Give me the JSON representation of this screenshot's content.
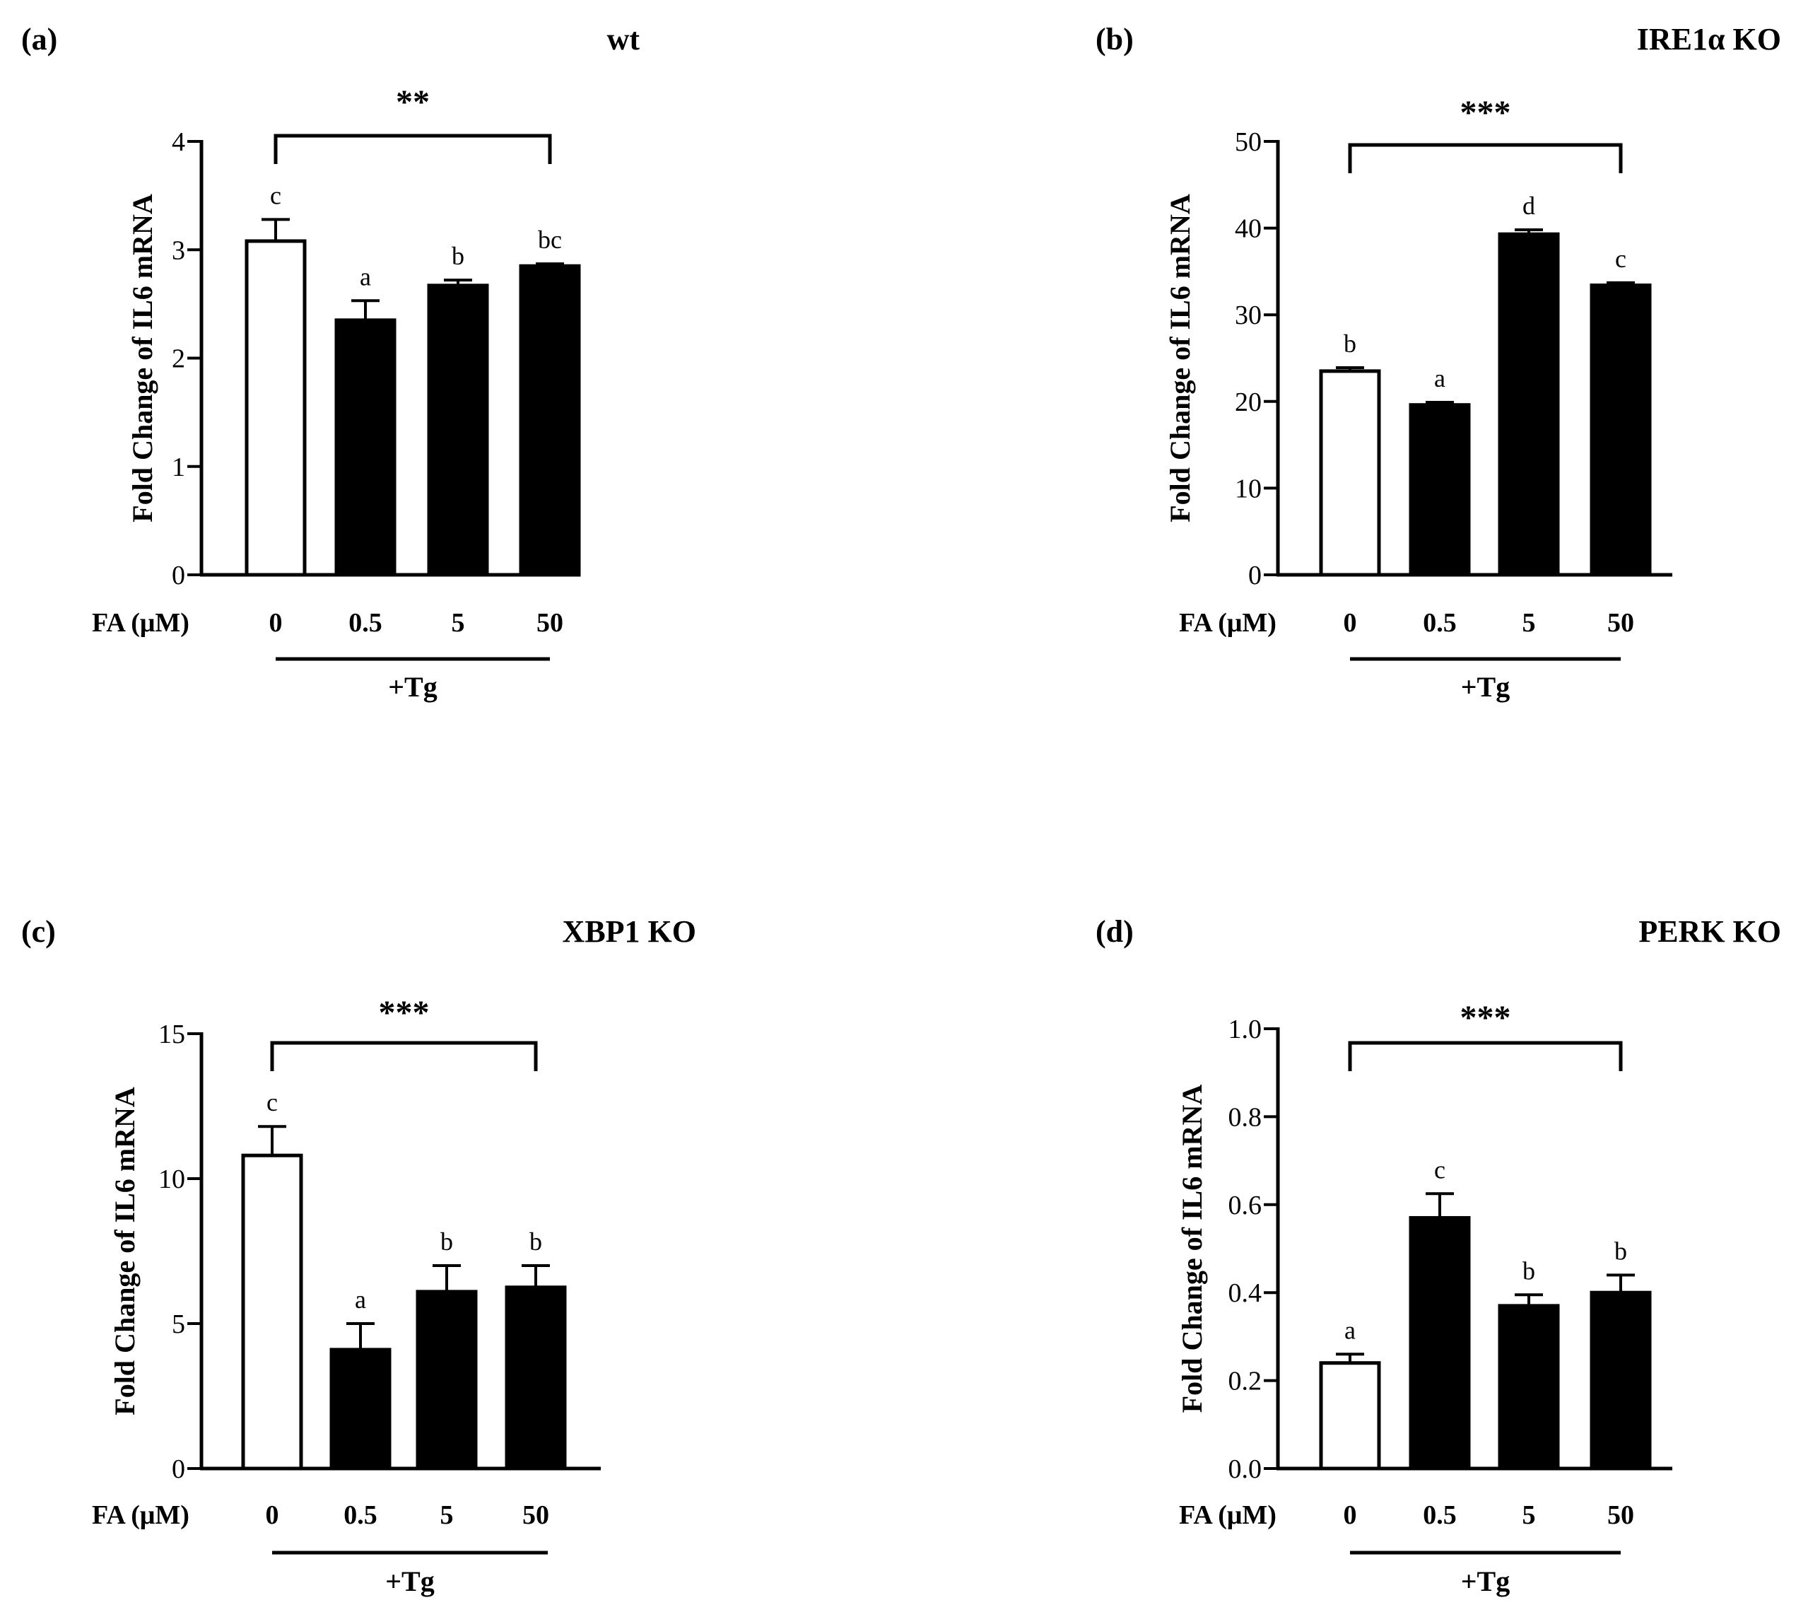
{
  "figure": {
    "colors": {
      "ink": "#000000",
      "control_bar": "#ffffff",
      "treated_bar": "#000000"
    },
    "shared": {
      "ylabel": "Fold Change of IL6 mRNA",
      "xvar_label": "FA (μM)",
      "group_label": "+Tg"
    }
  },
  "chart_data": [
    {
      "type": "bar",
      "panel": "(a)",
      "title": "wt",
      "xlabel": "FA (μM)",
      "ylabel": "Fold Change of IL6 mRNA",
      "categories": [
        "0",
        "0.5",
        "5",
        "50"
      ],
      "values": [
        3.08,
        2.35,
        2.67,
        2.85
      ],
      "errors": [
        0.2,
        0.18,
        0.05,
        0.02
      ],
      "letters": [
        "c",
        "a",
        "b",
        "bc"
      ],
      "ylim": [
        0,
        4
      ],
      "yticks": [
        "0",
        "1",
        "2",
        "3",
        "4"
      ],
      "significance": "**",
      "group_label": "+Tg"
    },
    {
      "type": "bar",
      "panel": "(b)",
      "title": "IRE1α KO",
      "xlabel": "FA (μM)",
      "ylabel": "Fold Change of IL6 mRNA",
      "categories": [
        "0",
        "0.5",
        "5",
        "50"
      ],
      "values": [
        23.5,
        19.6,
        39.3,
        33.4
      ],
      "errors": [
        0.4,
        0.3,
        0.5,
        0.3
      ],
      "letters": [
        "b",
        "a",
        "d",
        "c"
      ],
      "ylim": [
        0,
        50
      ],
      "yticks": [
        "0",
        "10",
        "20",
        "30",
        "40",
        "50"
      ],
      "significance": "***",
      "group_label": "+Tg"
    },
    {
      "type": "bar",
      "panel": "(c)",
      "title": "XBP1 KO",
      "xlabel": "FA (μM)",
      "ylabel": "Fold Change of IL6 mRNA",
      "categories": [
        "0",
        "0.5",
        "5",
        "50"
      ],
      "values": [
        10.8,
        4.1,
        6.1,
        6.25
      ],
      "errors": [
        1.0,
        0.9,
        0.9,
        0.75
      ],
      "letters": [
        "c",
        "a",
        "b",
        "b"
      ],
      "ylim": [
        0,
        15
      ],
      "yticks": [
        "0",
        "5",
        "10",
        "15"
      ],
      "significance": "***",
      "group_label": "+Tg"
    },
    {
      "type": "bar",
      "panel": "(d)",
      "title": "PERK KO",
      "xlabel": "FA (μM)",
      "ylabel": "Fold Change of IL6 mRNA",
      "categories": [
        "0",
        "0.5",
        "5",
        "50"
      ],
      "values": [
        0.24,
        0.57,
        0.37,
        0.4
      ],
      "errors": [
        0.02,
        0.055,
        0.025,
        0.04
      ],
      "letters": [
        "a",
        "c",
        "b",
        "b"
      ],
      "ylim": [
        0,
        1.0
      ],
      "yticks": [
        "0.0",
        "0.2",
        "0.4",
        "0.6",
        "0.8",
        "1.0"
      ],
      "significance": "***",
      "group_label": "+Tg"
    }
  ]
}
